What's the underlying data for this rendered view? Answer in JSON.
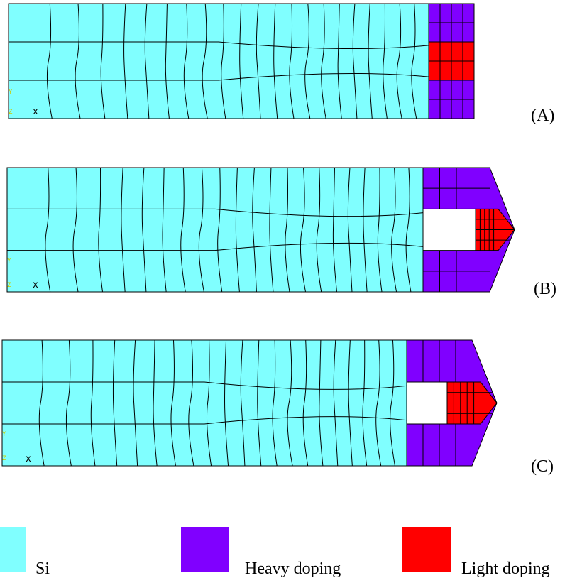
{
  "panels": [
    {
      "label": "(A)",
      "axis_x": "x",
      "axis_y": "Y",
      "axis_z": "Z"
    },
    {
      "label": "(B)",
      "axis_x": "x",
      "axis_y": "Y",
      "axis_z": "Z"
    },
    {
      "label": "(C)",
      "axis_x": "x",
      "axis_y": "Y",
      "axis_z": "Z"
    }
  ],
  "legend": [
    {
      "label": "Si"
    },
    {
      "label": "Heavy doping"
    },
    {
      "label": "Light doping"
    }
  ]
}
